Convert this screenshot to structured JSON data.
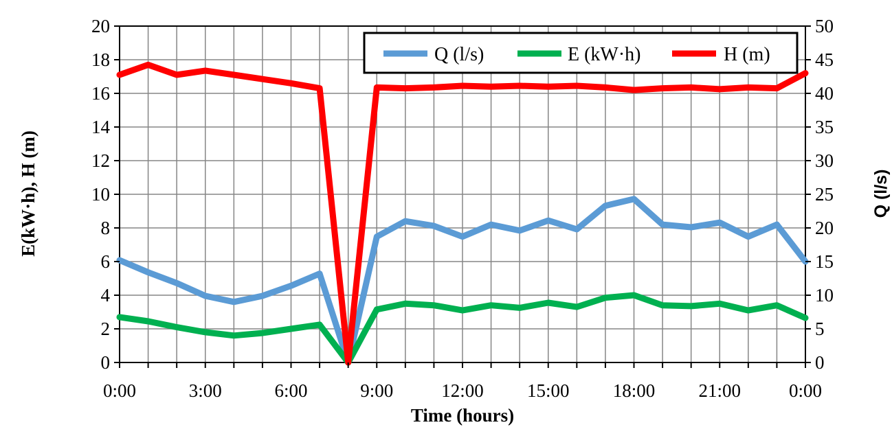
{
  "chart_data": {
    "type": "line",
    "title": "",
    "xlabel": "Time (hours)",
    "ylabel_left": "E(kW·h), H (m)",
    "ylabel_right": "Q (l/s)",
    "x_tick_labels": [
      "0:00",
      "3:00",
      "6:00",
      "9:00",
      "12:00",
      "15:00",
      "18:00",
      "21:00",
      "0:00"
    ],
    "x_hours": [
      0,
      1,
      2,
      3,
      4,
      5,
      6,
      7,
      8,
      9,
      10,
      11,
      12,
      13,
      14,
      15,
      16,
      17,
      18,
      19,
      20,
      21,
      22,
      23,
      24
    ],
    "xlim": [
      0,
      24
    ],
    "ylim_left": [
      0,
      20
    ],
    "ylim_right": [
      0,
      50
    ],
    "y_left_ticks": [
      "0",
      "2",
      "4",
      "6",
      "8",
      "10",
      "12",
      "14",
      "16",
      "18",
      "20"
    ],
    "y_right_ticks": [
      "0",
      "5",
      "10",
      "15",
      "20",
      "25",
      "30",
      "35",
      "40",
      "45",
      "50"
    ],
    "grid": true,
    "legend_position": "top-right",
    "series": [
      {
        "name": "Q (l/s)",
        "axis": "right",
        "color": "#5B9BD5",
        "values": [
          15.2,
          13.4,
          11.8,
          9.9,
          9.0,
          9.9,
          11.4,
          13.2,
          0,
          18.7,
          21.0,
          20.3,
          18.7,
          20.5,
          19.6,
          21.1,
          19.8,
          23.3,
          24.3,
          20.5,
          20.1,
          20.8,
          18.7,
          20.5,
          15.0
        ]
      },
      {
        "name": "E (kW·h)",
        "axis": "left",
        "color": "#00B050",
        "values": [
          2.7,
          2.45,
          2.1,
          1.8,
          1.6,
          1.75,
          2.0,
          2.25,
          0,
          3.15,
          3.5,
          3.4,
          3.1,
          3.4,
          3.25,
          3.55,
          3.3,
          3.85,
          4.0,
          3.4,
          3.35,
          3.5,
          3.1,
          3.4,
          2.65
        ]
      },
      {
        "name": "H (m)",
        "axis": "left",
        "color": "#FF0000",
        "values": [
          17.1,
          17.7,
          17.1,
          17.35,
          17.1,
          16.85,
          16.6,
          16.3,
          0,
          16.35,
          16.3,
          16.35,
          16.45,
          16.4,
          16.45,
          16.4,
          16.45,
          16.35,
          16.2,
          16.3,
          16.35,
          16.25,
          16.35,
          16.3,
          17.2
        ]
      }
    ]
  }
}
